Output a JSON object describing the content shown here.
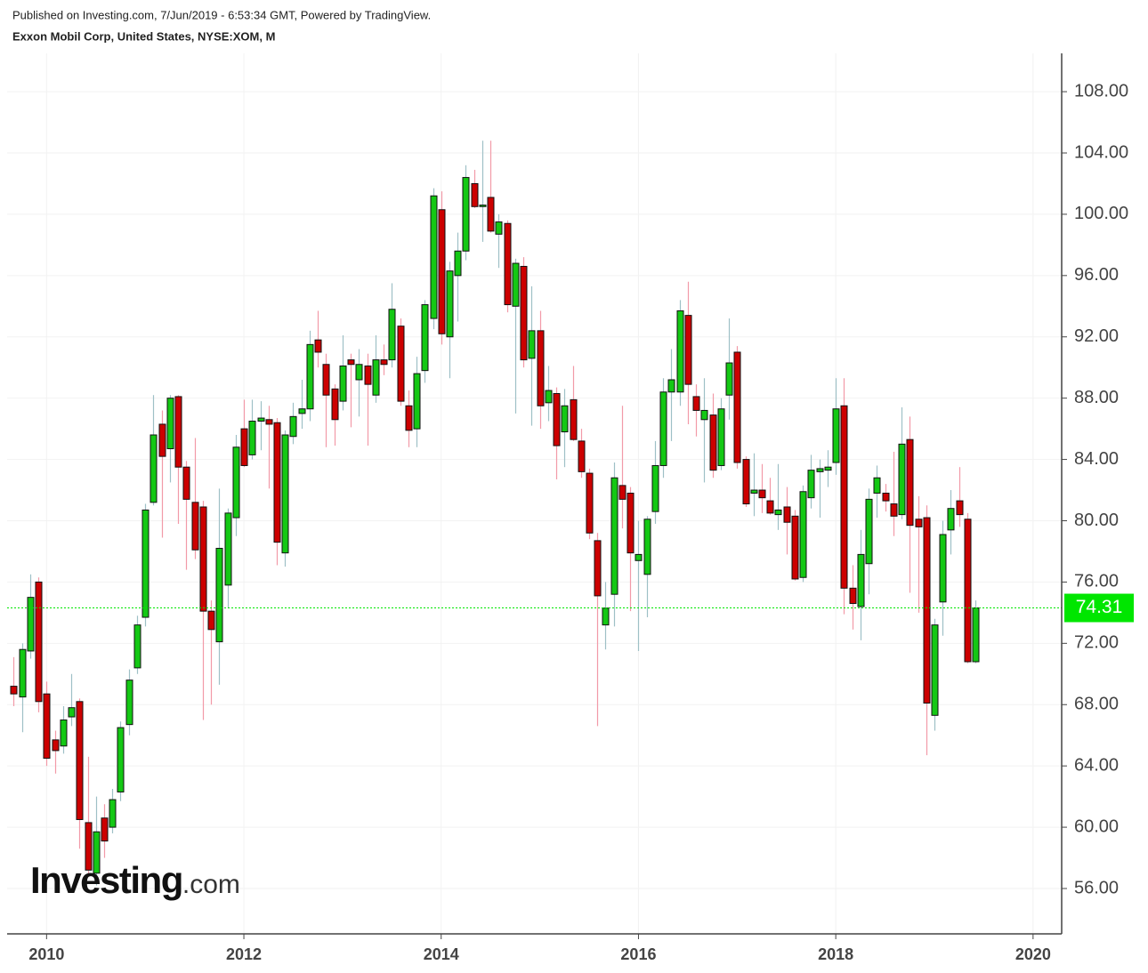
{
  "header": {
    "published": "Published on Investing.com, 7/Jun/2019 - 6:53:34 GMT, Powered by TradingView.",
    "instrument": "Exxon Mobil Corp, United States, NYSE:XOM, M"
  },
  "watermark": {
    "brand": "Investing",
    "suffix": ".com"
  },
  "chart_data": {
    "type": "candlestick",
    "x": [
      "2009-09",
      "2009-10",
      "2009-11",
      "2009-12",
      "2010-01",
      "2010-02",
      "2010-03",
      "2010-04",
      "2010-05",
      "2010-06",
      "2010-07",
      "2010-08",
      "2010-09",
      "2010-10",
      "2010-11",
      "2010-12",
      "2011-01",
      "2011-02",
      "2011-03",
      "2011-04",
      "2011-05",
      "2011-06",
      "2011-07",
      "2011-08",
      "2011-09",
      "2011-10",
      "2011-11",
      "2011-12",
      "2012-01",
      "2012-02",
      "2012-03",
      "2012-04",
      "2012-05",
      "2012-06",
      "2012-07",
      "2012-08",
      "2012-09",
      "2012-10",
      "2012-11",
      "2012-12",
      "2013-01",
      "2013-02",
      "2013-03",
      "2013-04",
      "2013-05",
      "2013-06",
      "2013-07",
      "2013-08",
      "2013-09",
      "2013-10",
      "2013-11",
      "2013-12",
      "2014-01",
      "2014-02",
      "2014-03",
      "2014-04",
      "2014-05",
      "2014-06",
      "2014-07",
      "2014-08",
      "2014-09",
      "2014-10",
      "2014-11",
      "2014-12",
      "2015-01",
      "2015-02",
      "2015-03",
      "2015-04",
      "2015-05",
      "2015-06",
      "2015-07",
      "2015-08",
      "2015-09",
      "2015-10",
      "2015-11",
      "2015-12",
      "2016-01",
      "2016-02",
      "2016-03",
      "2016-04",
      "2016-05",
      "2016-06",
      "2016-07",
      "2016-08",
      "2016-09",
      "2016-10",
      "2016-11",
      "2016-12",
      "2017-01",
      "2017-02",
      "2017-03",
      "2017-04",
      "2017-05",
      "2017-06",
      "2017-07",
      "2017-08",
      "2017-09",
      "2017-10",
      "2017-11",
      "2017-12",
      "2018-01",
      "2018-02",
      "2018-03",
      "2018-04",
      "2018-05",
      "2018-06",
      "2018-07",
      "2018-08",
      "2018-09",
      "2018-10",
      "2018-11",
      "2018-12",
      "2019-01",
      "2019-02",
      "2019-03",
      "2019-04",
      "2019-05",
      "2019-06"
    ],
    "open": [
      69.2,
      68.5,
      71.5,
      76,
      68.7,
      65.7,
      65.3,
      67.2,
      68.2,
      60.3,
      57,
      60.6,
      60,
      62.3,
      66.7,
      70.4,
      73.7,
      81.2,
      86.3,
      84.7,
      88.1,
      83.5,
      81.2,
      80.9,
      74.1,
      72.1,
      75.8,
      80.2,
      86,
      84.3,
      86.5,
      86.6,
      86.4,
      77.9,
      85.5,
      87,
      87.3,
      91.8,
      90.2,
      88.6,
      87.8,
      90.5,
      89.2,
      90.1,
      88.2,
      90.5,
      90.5,
      92.7,
      87.5,
      86,
      89.8,
      93.2,
      100.3,
      92,
      96,
      97.6,
      102,
      100.5,
      101.1,
      98.7,
      99.4,
      94,
      96.6,
      90.6,
      92.4,
      87.7,
      88.3,
      85.8,
      87.9,
      85.2,
      83.1,
      78.7,
      73.2,
      75.2,
      82.3,
      81.8,
      77.4,
      76.5,
      80.6,
      83.6,
      88.4,
      88.4,
      93.4,
      88.1,
      86.6,
      86.9,
      83.6,
      88.2,
      91,
      84,
      81.8,
      82,
      81.3,
      80.4,
      80.9,
      80.3,
      76.3,
      81.5,
      83.2,
      83.3,
      83.8,
      87.5,
      75.6,
      74.4,
      77.2,
      81.8,
      81.8,
      81.1,
      80.4,
      85.3,
      80.1,
      80.2,
      67.3,
      74.7,
      79.4,
      81.3,
      80.1,
      70.8
    ],
    "high": [
      71.1,
      72,
      76.5,
      76.3,
      69.5,
      66.3,
      67.9,
      70,
      68.4,
      64.6,
      62,
      61.5,
      62.5,
      66.9,
      70.3,
      73.8,
      81.1,
      88.2,
      87.2,
      88.2,
      88.2,
      83.9,
      85.4,
      81.3,
      74.8,
      82.1,
      80.8,
      85.6,
      87.9,
      87.9,
      87.8,
      87.5,
      86.7,
      85.9,
      87.7,
      89.2,
      92.4,
      93.7,
      90.9,
      88.9,
      92.1,
      90.9,
      91.2,
      90.9,
      92.1,
      91.5,
      95.5,
      93.2,
      88.5,
      90.7,
      94.4,
      101.7,
      101.5,
      96.9,
      98.8,
      103.2,
      102.9,
      104.8,
      104.8,
      100,
      99.6,
      97.1,
      97.2,
      95.3,
      93.7,
      90.1,
      88.7,
      88.6,
      90.1,
      86,
      83.4,
      79.2,
      76,
      83.8,
      87.5,
      82.2,
      80,
      80.3,
      85.2,
      89.3,
      91.2,
      94.4,
      95.6,
      88.9,
      89.3,
      88.3,
      88,
      93.2,
      91.4,
      84.2,
      84.4,
      83.7,
      82.8,
      83.7,
      82.2,
      80.7,
      82.3,
      84.3,
      84,
      84.6,
      89.3,
      89.3,
      77.1,
      79.4,
      82.1,
      83.6,
      82.4,
      84.5,
      87.4,
      86.8,
      81.6,
      81,
      73.6,
      80,
      82,
      83.5,
      80.5,
      74.8
    ],
    "low": [
      67.9,
      66.2,
      71,
      67.5,
      64,
      63.5,
      64.8,
      66.6,
      58.6,
      56.8,
      56.2,
      58,
      59.6,
      61.7,
      66,
      70,
      73.1,
      81,
      78.9,
      82.5,
      79.8,
      76.8,
      77.5,
      67,
      68,
      69.3,
      74.3,
      79,
      83.5,
      84,
      84.6,
      82.1,
      77.1,
      77,
      85,
      86,
      86.5,
      90,
      84.8,
      84.9,
      87.2,
      86.1,
      86.8,
      84.9,
      87.7,
      89.5,
      90,
      87.5,
      84.8,
      84.8,
      89,
      92.5,
      91.5,
      89.3,
      93,
      97,
      100.4,
      98.2,
      98.8,
      96.5,
      93.6,
      87,
      90,
      86.2,
      86,
      86.5,
      82.7,
      83.5,
      85.2,
      82.8,
      78.8,
      66.6,
      71.6,
      73.1,
      79.5,
      74.1,
      71.5,
      73.7,
      79.8,
      82.8,
      85.2,
      87.5,
      86.3,
      85.5,
      82.5,
      82.8,
      83.3,
      86.6,
      83.4,
      80.9,
      80.3,
      80.5,
      80.4,
      79.4,
      77.8,
      76.1,
      76,
      80.8,
      80.2,
      82.2,
      83,
      73.9,
      72.9,
      72.2,
      75.2,
      80.2,
      80.6,
      79,
      80.1,
      75.3,
      74,
      64.7,
      66.3,
      72.5,
      77.8,
      79.6,
      70.7,
      70.7
    ],
    "close": [
      68.7,
      71.6,
      75,
      68.2,
      64.5,
      65,
      67,
      67.8,
      60.5,
      57.2,
      59.7,
      59.1,
      61.8,
      66.5,
      69.6,
      73.2,
      80.7,
      85.6,
      84.2,
      88,
      83.5,
      81.4,
      78.1,
      74.1,
      72.9,
      78.2,
      80.5,
      84.8,
      83.6,
      86.5,
      86.7,
      86.3,
      78.6,
      85.6,
      86.8,
      87.3,
      91.5,
      91,
      88.2,
      86.6,
      90.1,
      90.2,
      90.2,
      88.9,
      90.5,
      90.2,
      93.8,
      87.8,
      85.9,
      89.6,
      94.1,
      101.2,
      92.2,
      96.3,
      97.6,
      102.4,
      100.5,
      100.6,
      98.9,
      99.5,
      94.1,
      96.8,
      90.5,
      92.4,
      87.5,
      88.5,
      84.9,
      87.5,
      85.3,
      83.2,
      79.2,
      75.1,
      74.3,
      82.8,
      81.4,
      77.9,
      77.8,
      80.1,
      83.6,
      88.4,
      89.2,
      93.7,
      88.9,
      87.2,
      87.2,
      83.3,
      87.3,
      90.3,
      83.8,
      81.1,
      82,
      81.5,
      80.5,
      80.7,
      79.9,
      76.2,
      81.9,
      83.3,
      83.4,
      83.5,
      87.3,
      75.6,
      74.6,
      77.8,
      81.4,
      82.8,
      81.3,
      80.3,
      85,
      79.7,
      79.6,
      68.1,
      73.2,
      79.1,
      80.8,
      80.4,
      70.8,
      74.31
    ],
    "up_color": "#14c814",
    "down_color": "#cc0000",
    "up_wick_color": "#9ec0c6",
    "down_wick_color": "#f29aa8",
    "last_price_color": "#00e600",
    "xlim": [
      2009.6,
      2020.29
    ],
    "xticks": [
      2010,
      2012,
      2014,
      2016,
      2018,
      2020
    ],
    "ylim": [
      53.04,
      110.5
    ],
    "yticks": [
      {
        "value": 56,
        "label": "56.00"
      },
      {
        "value": 60,
        "label": "60.00"
      },
      {
        "value": 64,
        "label": "64.00"
      },
      {
        "value": 68,
        "label": "68.00"
      },
      {
        "value": 72,
        "label": "72.00"
      },
      {
        "value": 76,
        "label": "76.00"
      },
      {
        "value": 80,
        "label": "80.00"
      },
      {
        "value": 84,
        "label": "84.00"
      },
      {
        "value": 88,
        "label": "88.00"
      },
      {
        "value": 92,
        "label": "92.00"
      },
      {
        "value": 96,
        "label": "96.00"
      },
      {
        "value": 100,
        "label": "100.00"
      },
      {
        "value": 104,
        "label": "104.00"
      },
      {
        "value": 108,
        "label": "108.00"
      }
    ],
    "grid": true
  }
}
